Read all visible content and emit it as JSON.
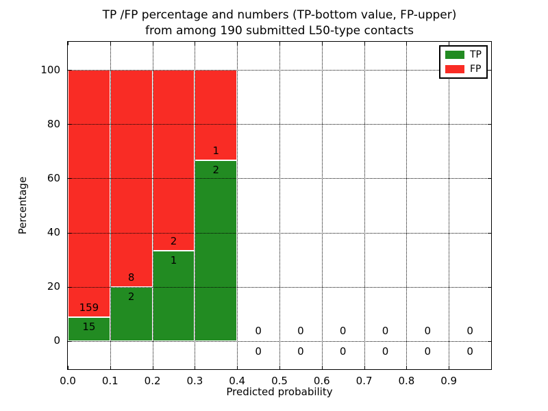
{
  "title": {
    "line1": "TP /FP percentage and numbers (TP-bottom value, FP-upper)",
    "line2": "from among 190 submitted L50-type contacts"
  },
  "axes": {
    "xlabel": "Predicted probability",
    "ylabel": "Percentage",
    "xticks": [
      {
        "v": 0.0,
        "label": "0.0"
      },
      {
        "v": 0.1,
        "label": "0.1"
      },
      {
        "v": 0.2,
        "label": "0.2"
      },
      {
        "v": 0.3,
        "label": "0.3"
      },
      {
        "v": 0.4,
        "label": "0.4"
      },
      {
        "v": 0.5,
        "label": "0.5"
      },
      {
        "v": 0.6,
        "label": "0.6"
      },
      {
        "v": 0.7,
        "label": "0.7"
      },
      {
        "v": 0.8,
        "label": "0.8"
      },
      {
        "v": 0.9,
        "label": "0.9"
      }
    ],
    "yticks": [
      {
        "v": 0,
        "label": "0"
      },
      {
        "v": 20,
        "label": "20"
      },
      {
        "v": 40,
        "label": "40"
      },
      {
        "v": 60,
        "label": "60"
      },
      {
        "v": 80,
        "label": "80"
      },
      {
        "v": 100,
        "label": "100"
      }
    ]
  },
  "legend": {
    "items": [
      {
        "label": "TP",
        "color": "#228b22"
      },
      {
        "label": "FP",
        "color": "#f92c25"
      }
    ]
  },
  "colors": {
    "tp": "#228b22",
    "fp": "#f92c25",
    "grid": "#000000",
    "background": "#ffffff",
    "text": "#000000"
  },
  "chart_data": {
    "type": "bar",
    "stacked": true,
    "title": "TP /FP percentage and numbers (TP-bottom value, FP-upper)\nfrom among 190 submitted L50-type contacts",
    "xlabel": "Predicted probability",
    "ylabel": "Percentage",
    "xlim": [
      0.0,
      1.0
    ],
    "ylim": [
      -10.5,
      110.5
    ],
    "grid": true,
    "legend_position": "upper right",
    "total_contacts": 190,
    "bin_width": 0.1,
    "values_unit": "percent of bin total; numeric labels are raw counts (TP bottom, FP upper)",
    "series": [
      {
        "name": "TP",
        "color": "#228b22",
        "counts": [
          15,
          2,
          1,
          2,
          0,
          0,
          0,
          0,
          0,
          0
        ]
      },
      {
        "name": "FP",
        "color": "#f92c25",
        "counts": [
          159,
          8,
          2,
          1,
          0,
          0,
          0,
          0,
          0,
          0
        ]
      }
    ],
    "bins": [
      {
        "x0": 0.0,
        "x1": 0.1,
        "tp_count": 15,
        "fp_count": 159,
        "tp_pct": 8.62,
        "fp_pct": 91.38
      },
      {
        "x0": 0.1,
        "x1": 0.2,
        "tp_count": 2,
        "fp_count": 8,
        "tp_pct": 20.0,
        "fp_pct": 80.0
      },
      {
        "x0": 0.2,
        "x1": 0.3,
        "tp_count": 1,
        "fp_count": 2,
        "tp_pct": 33.33,
        "fp_pct": 66.67
      },
      {
        "x0": 0.3,
        "x1": 0.4,
        "tp_count": 2,
        "fp_count": 1,
        "tp_pct": 66.67,
        "fp_pct": 33.33
      },
      {
        "x0": 0.4,
        "x1": 0.5,
        "tp_count": 0,
        "fp_count": 0,
        "tp_pct": 0,
        "fp_pct": 0
      },
      {
        "x0": 0.5,
        "x1": 0.6,
        "tp_count": 0,
        "fp_count": 0,
        "tp_pct": 0,
        "fp_pct": 0
      },
      {
        "x0": 0.6,
        "x1": 0.7,
        "tp_count": 0,
        "fp_count": 0,
        "tp_pct": 0,
        "fp_pct": 0
      },
      {
        "x0": 0.7,
        "x1": 0.8,
        "tp_count": 0,
        "fp_count": 0,
        "tp_pct": 0,
        "fp_pct": 0
      },
      {
        "x0": 0.8,
        "x1": 0.9,
        "tp_count": 0,
        "fp_count": 0,
        "tp_pct": 0,
        "fp_pct": 0
      },
      {
        "x0": 0.9,
        "x1": 1.0,
        "tp_count": 0,
        "fp_count": 0,
        "tp_pct": 0,
        "fp_pct": 0
      }
    ]
  }
}
